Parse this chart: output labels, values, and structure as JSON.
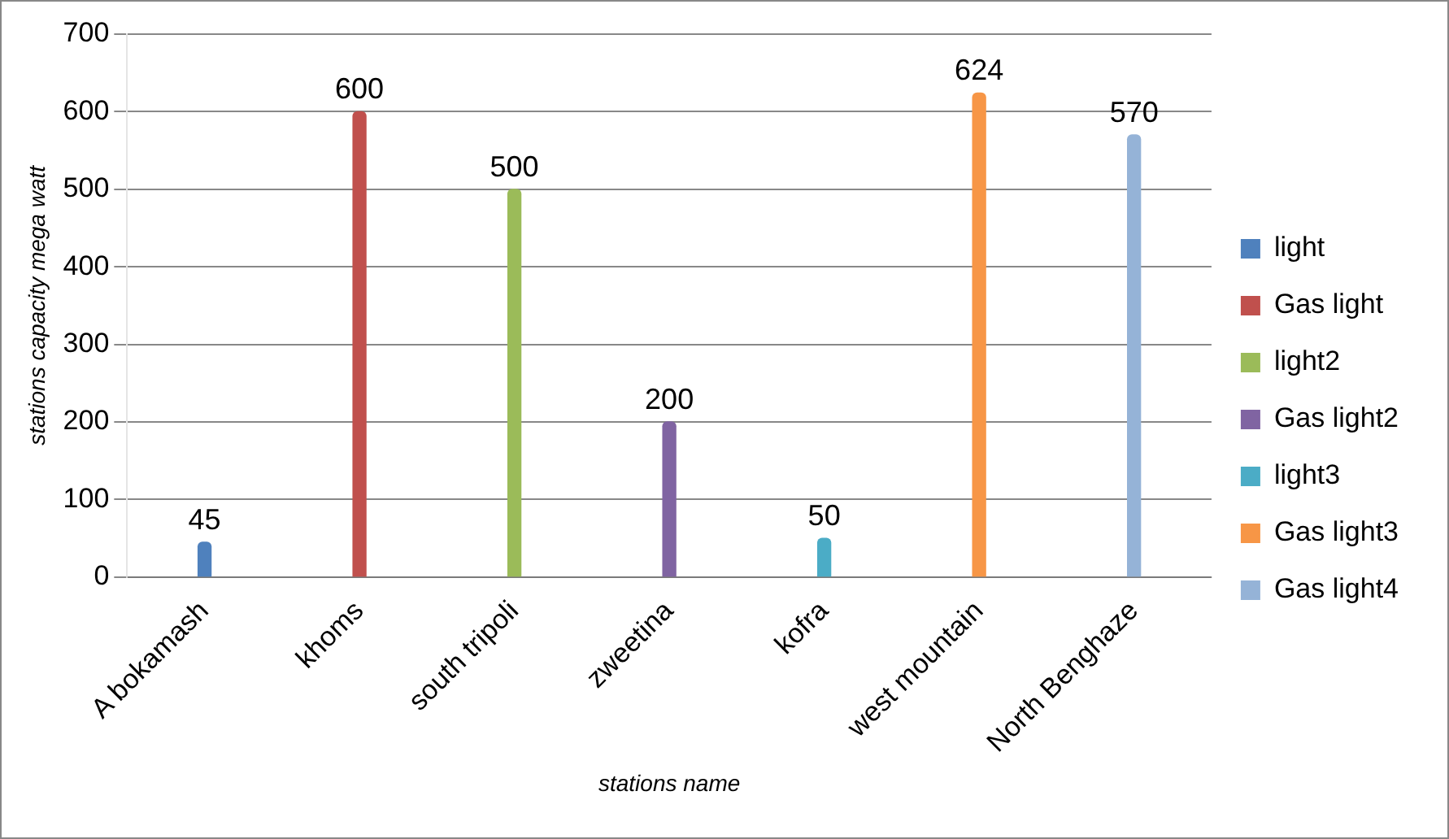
{
  "chart_data": {
    "type": "bar",
    "xlabel": "stations name",
    "ylabel": "stations capacity mega watt",
    "categories": [
      "A bokamash",
      "khoms",
      "south tripoli",
      "zweetina",
      "kofra",
      "west mountain",
      "North Benghaze"
    ],
    "series": [
      {
        "name": "light",
        "color": "#4f81bd",
        "values": [
          45,
          null,
          null,
          null,
          null,
          null,
          null
        ]
      },
      {
        "name": "Gas light",
        "color": "#c0504d",
        "values": [
          null,
          600,
          null,
          null,
          null,
          null,
          null
        ]
      },
      {
        "name": "light2",
        "color": "#9bbb59",
        "values": [
          null,
          null,
          500,
          null,
          null,
          null,
          null
        ]
      },
      {
        "name": "Gas light2",
        "color": "#8064a2",
        "values": [
          null,
          null,
          null,
          200,
          null,
          null,
          null
        ]
      },
      {
        "name": "light3",
        "color": "#4bacc6",
        "values": [
          null,
          null,
          null,
          null,
          50,
          null,
          null
        ]
      },
      {
        "name": "Gas light3",
        "color": "#f79646",
        "values": [
          null,
          null,
          null,
          null,
          null,
          624,
          null
        ]
      },
      {
        "name": "Gas light4",
        "color": "#95b3d7",
        "values": [
          null,
          null,
          null,
          null,
          null,
          null,
          570
        ]
      }
    ],
    "ylim": [
      0,
      700
    ],
    "yticks": [
      0,
      100,
      200,
      300,
      400,
      500,
      600,
      700
    ],
    "grid": "y",
    "legend": "right",
    "data_labels": true
  }
}
